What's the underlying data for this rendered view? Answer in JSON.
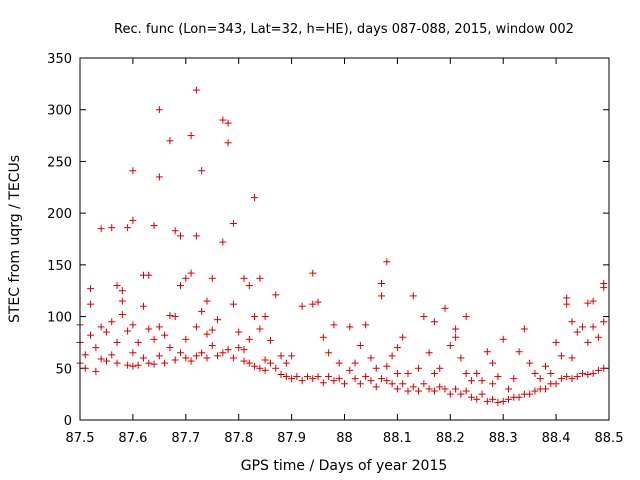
{
  "chart_data": {
    "type": "scatter",
    "title": "Rec. func (Lon=343, Lat=32, h=HE), days 087-088, 2015, window 002",
    "xlabel": "GPS time / Days of year 2015",
    "ylabel": "STEC from uqrg / TECUs",
    "xlim": [
      87.5,
      88.5
    ],
    "ylim": [
      0,
      350
    ],
    "xticks": [
      "87.5",
      "87.6",
      "87.7",
      "87.8",
      "87.9",
      "88",
      "88.1",
      "88.2",
      "88.3",
      "88.4",
      "88.5"
    ],
    "yticks": [
      "0",
      "50",
      "100",
      "150",
      "200",
      "250",
      "300",
      "350"
    ],
    "marker": "+",
    "color": "#d40000",
    "series": [
      {
        "name": "STEC",
        "points": [
          [
            87.5,
            92
          ],
          [
            87.5,
            75
          ],
          [
            87.5,
            55
          ],
          [
            87.51,
            50
          ],
          [
            87.51,
            63
          ],
          [
            87.52,
            82
          ],
          [
            87.52,
            112
          ],
          [
            87.52,
            127
          ],
          [
            87.53,
            47
          ],
          [
            87.53,
            70
          ],
          [
            87.54,
            59
          ],
          [
            87.54,
            90
          ],
          [
            87.54,
            185
          ],
          [
            87.55,
            57
          ],
          [
            87.55,
            85
          ],
          [
            87.56,
            186
          ],
          [
            87.56,
            95
          ],
          [
            87.56,
            63
          ],
          [
            87.57,
            55
          ],
          [
            87.57,
            75
          ],
          [
            87.57,
            130
          ],
          [
            87.58,
            102
          ],
          [
            87.58,
            115
          ],
          [
            87.58,
            125
          ],
          [
            87.59,
            53
          ],
          [
            87.59,
            86
          ],
          [
            87.59,
            186
          ],
          [
            87.6,
            52
          ],
          [
            87.6,
            65
          ],
          [
            87.6,
            92
          ],
          [
            87.6,
            241
          ],
          [
            87.6,
            193
          ],
          [
            87.61,
            53
          ],
          [
            87.61,
            75
          ],
          [
            87.62,
            60
          ],
          [
            87.62,
            110
          ],
          [
            87.62,
            140
          ],
          [
            87.63,
            55
          ],
          [
            87.63,
            88
          ],
          [
            87.63,
            140
          ],
          [
            87.64,
            54
          ],
          [
            87.64,
            78
          ],
          [
            87.64,
            188
          ],
          [
            87.65,
            62
          ],
          [
            87.65,
            90
          ],
          [
            87.65,
            235
          ],
          [
            87.65,
            300
          ],
          [
            87.66,
            55
          ],
          [
            87.66,
            82
          ],
          [
            87.67,
            101
          ],
          [
            87.67,
            270
          ],
          [
            87.67,
            70
          ],
          [
            87.68,
            58
          ],
          [
            87.68,
            100
          ],
          [
            87.68,
            183
          ],
          [
            87.69,
            65
          ],
          [
            87.69,
            130
          ],
          [
            87.69,
            178
          ],
          [
            87.7,
            60
          ],
          [
            87.7,
            78
          ],
          [
            87.7,
            137
          ],
          [
            87.71,
            57
          ],
          [
            87.71,
            142
          ],
          [
            87.71,
            275
          ],
          [
            87.72,
            62
          ],
          [
            87.72,
            90
          ],
          [
            87.72,
            178
          ],
          [
            87.72,
            319
          ],
          [
            87.73,
            65
          ],
          [
            87.73,
            105
          ],
          [
            87.73,
            241
          ],
          [
            87.74,
            60
          ],
          [
            87.74,
            83
          ],
          [
            87.74,
            115
          ],
          [
            87.75,
            72
          ],
          [
            87.75,
            137
          ],
          [
            87.75,
            87
          ],
          [
            87.76,
            62
          ],
          [
            87.76,
            97
          ],
          [
            87.77,
            65
          ],
          [
            87.77,
            172
          ],
          [
            87.77,
            290
          ],
          [
            87.78,
            68
          ],
          [
            87.78,
            268
          ],
          [
            87.78,
            287
          ],
          [
            87.79,
            60
          ],
          [
            87.79,
            112
          ],
          [
            87.79,
            190
          ],
          [
            87.8,
            70
          ],
          [
            87.8,
            85
          ],
          [
            87.81,
            57
          ],
          [
            87.81,
            137
          ],
          [
            87.81,
            68
          ],
          [
            87.82,
            55
          ],
          [
            87.82,
            130
          ],
          [
            87.82,
            78
          ],
          [
            87.83,
            52
          ],
          [
            87.83,
            100
          ],
          [
            87.83,
            215
          ],
          [
            87.84,
            50
          ],
          [
            87.84,
            88
          ],
          [
            87.84,
            137
          ],
          [
            87.85,
            48
          ],
          [
            87.85,
            58
          ],
          [
            87.85,
            100
          ],
          [
            87.86,
            55
          ],
          [
            87.86,
            77
          ],
          [
            87.87,
            50
          ],
          [
            87.87,
            121
          ],
          [
            87.88,
            44
          ],
          [
            87.88,
            62
          ],
          [
            87.89,
            42
          ],
          [
            87.89,
            55
          ],
          [
            87.9,
            40
          ],
          [
            87.9,
            62
          ],
          [
            87.91,
            42
          ],
          [
            87.92,
            38
          ],
          [
            87.92,
            110
          ],
          [
            87.93,
            42
          ],
          [
            87.94,
            40
          ],
          [
            87.94,
            142
          ],
          [
            87.94,
            112
          ],
          [
            87.95,
            42
          ],
          [
            87.95,
            114
          ],
          [
            87.96,
            36
          ],
          [
            87.96,
            80
          ],
          [
            87.97,
            42
          ],
          [
            87.97,
            65
          ],
          [
            87.98,
            38
          ],
          [
            87.98,
            92
          ],
          [
            87.99,
            40
          ],
          [
            87.99,
            55
          ],
          [
            88.0,
            35
          ],
          [
            88.01,
            48
          ],
          [
            88.01,
            90
          ],
          [
            88.02,
            40
          ],
          [
            88.02,
            55
          ],
          [
            88.03,
            35
          ],
          [
            88.03,
            72
          ],
          [
            88.04,
            42
          ],
          [
            88.04,
            92
          ],
          [
            88.05,
            38
          ],
          [
            88.05,
            60
          ],
          [
            88.06,
            32
          ],
          [
            88.06,
            50
          ],
          [
            88.07,
            40
          ],
          [
            88.07,
            120
          ],
          [
            88.07,
            132
          ],
          [
            88.08,
            38
          ],
          [
            88.08,
            52
          ],
          [
            88.08,
            153
          ],
          [
            88.09,
            35
          ],
          [
            88.09,
            62
          ],
          [
            88.1,
            30
          ],
          [
            88.1,
            45
          ],
          [
            88.1,
            70
          ],
          [
            88.11,
            35
          ],
          [
            88.11,
            80
          ],
          [
            88.12,
            28
          ],
          [
            88.12,
            45
          ],
          [
            88.13,
            32
          ],
          [
            88.13,
            120
          ],
          [
            88.14,
            28
          ],
          [
            88.14,
            50
          ],
          [
            88.15,
            35
          ],
          [
            88.15,
            100
          ],
          [
            88.16,
            30
          ],
          [
            88.16,
            65
          ],
          [
            88.17,
            28
          ],
          [
            88.17,
            45
          ],
          [
            88.17,
            95
          ],
          [
            88.18,
            32
          ],
          [
            88.18,
            50
          ],
          [
            88.19,
            30
          ],
          [
            88.19,
            108
          ],
          [
            88.2,
            25
          ],
          [
            88.2,
            72
          ],
          [
            88.21,
            30
          ],
          [
            88.21,
            80
          ],
          [
            88.21,
            88
          ],
          [
            88.22,
            25
          ],
          [
            88.22,
            60
          ],
          [
            88.23,
            28
          ],
          [
            88.23,
            45
          ],
          [
            88.23,
            100
          ],
          [
            88.24,
            22
          ],
          [
            88.24,
            38
          ],
          [
            88.25,
            20
          ],
          [
            88.25,
            45
          ],
          [
            88.26,
            25
          ],
          [
            88.26,
            38
          ],
          [
            88.27,
            18
          ],
          [
            88.27,
            66
          ],
          [
            88.28,
            20
          ],
          [
            88.28,
            35
          ],
          [
            88.28,
            55
          ],
          [
            88.29,
            17
          ],
          [
            88.29,
            42
          ],
          [
            88.3,
            18
          ],
          [
            88.3,
            78
          ],
          [
            88.31,
            20
          ],
          [
            88.31,
            30
          ],
          [
            88.32,
            22
          ],
          [
            88.32,
            40
          ],
          [
            88.33,
            22
          ],
          [
            88.33,
            66
          ],
          [
            88.34,
            25
          ],
          [
            88.34,
            88
          ],
          [
            88.35,
            25
          ],
          [
            88.35,
            55
          ],
          [
            88.36,
            28
          ],
          [
            88.36,
            45
          ],
          [
            88.37,
            30
          ],
          [
            88.37,
            40
          ],
          [
            88.38,
            30
          ],
          [
            88.38,
            52
          ],
          [
            88.39,
            35
          ],
          [
            88.39,
            45
          ],
          [
            88.4,
            35
          ],
          [
            88.4,
            75
          ],
          [
            88.41,
            40
          ],
          [
            88.41,
            62
          ],
          [
            88.42,
            42
          ],
          [
            88.42,
            112
          ],
          [
            88.42,
            118
          ],
          [
            88.43,
            40
          ],
          [
            88.43,
            60
          ],
          [
            88.43,
            95
          ],
          [
            88.44,
            42
          ],
          [
            88.44,
            85
          ],
          [
            88.45,
            45
          ],
          [
            88.45,
            90
          ],
          [
            88.46,
            44
          ],
          [
            88.46,
            113
          ],
          [
            88.46,
            75
          ],
          [
            88.47,
            45
          ],
          [
            88.47,
            90
          ],
          [
            88.47,
            115
          ],
          [
            88.48,
            48
          ],
          [
            88.48,
            80
          ],
          [
            88.49,
            50
          ],
          [
            88.49,
            95
          ],
          [
            88.49,
            128
          ],
          [
            88.49,
            132
          ]
        ]
      }
    ]
  }
}
